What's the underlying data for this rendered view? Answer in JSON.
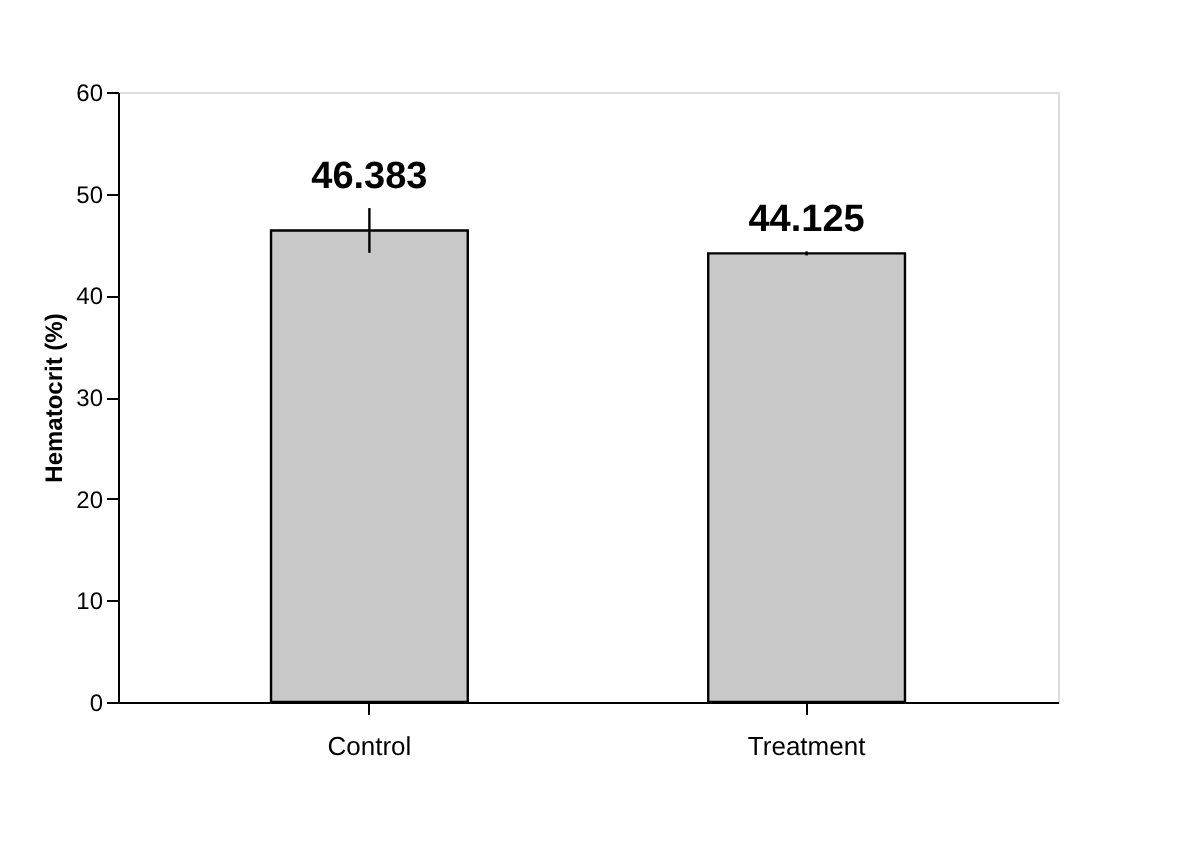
{
  "chart_data": {
    "type": "bar",
    "ylabel": "Hematocrit (%)",
    "categories": [
      "Control",
      "Treatment"
    ],
    "values": [
      46.383,
      44.125
    ],
    "errors": [
      2.2,
      0.2
    ],
    "color": "#c8c8c8",
    "data_labels": true,
    "ylim": [
      0,
      60
    ],
    "yticks": [
      0,
      10,
      20,
      30,
      40,
      50,
      60
    ],
    "grid": false
  }
}
